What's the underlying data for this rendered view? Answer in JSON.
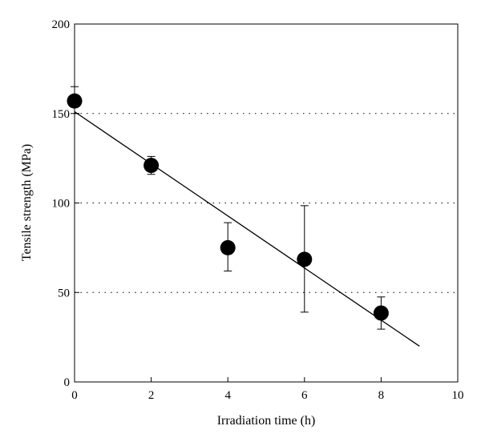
{
  "chart_data": {
    "type": "scatter",
    "title": "",
    "xlabel": "Irradiation time (h)",
    "ylabel": "Tensile strength (MPa)",
    "xlim": [
      0,
      10
    ],
    "ylim": [
      0,
      200
    ],
    "xticks": [
      0,
      2,
      4,
      6,
      8,
      10
    ],
    "yticks": [
      0,
      50,
      100,
      150,
      200
    ],
    "grid": "horizontal dotted at 50, 100, 150",
    "legend": "none",
    "series": [
      {
        "points": [
          {
            "x": 0,
            "y": 157,
            "err_low": 150,
            "err_high": 165
          },
          {
            "x": 2,
            "y": 121,
            "err_low": 116,
            "err_high": 126
          },
          {
            "x": 4,
            "y": 75,
            "err_low": 62,
            "err_high": 89
          },
          {
            "x": 6,
            "y": 68.5,
            "err_low": 39,
            "err_high": 98.5
          },
          {
            "x": 8,
            "y": 38.5,
            "err_low": 29.5,
            "err_high": 47.5
          }
        ]
      }
    ],
    "trendline": {
      "x": [
        0,
        9
      ],
      "y": [
        151,
        20
      ]
    }
  }
}
